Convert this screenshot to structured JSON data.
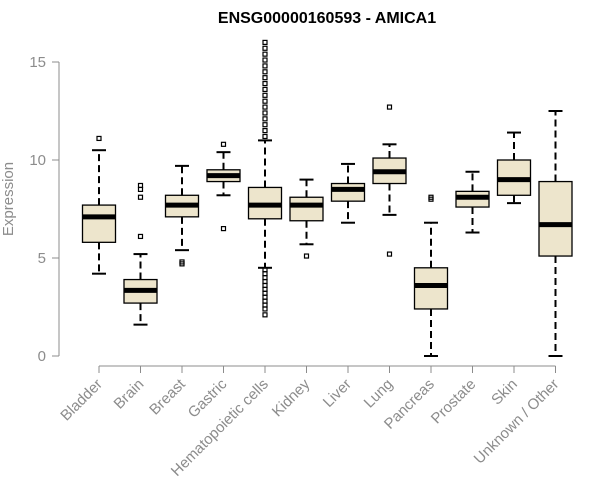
{
  "chart_data": {
    "type": "boxplot",
    "title": "ENSG00000160593 - AMICA1",
    "xlabel": "",
    "ylabel": "Expression",
    "ylim": [
      0,
      16
    ],
    "yticks": [
      0,
      5,
      10,
      15
    ],
    "box_fill": "#ede5cc",
    "box_stroke": "#000000",
    "axis_color": "#8c8c8c",
    "categories": [
      "Bladder",
      "Brain",
      "Breast",
      "Gastric",
      "Hematopoietic cells",
      "Kidney",
      "Liver",
      "Lung",
      "Pancreas",
      "Prostate",
      "Skin",
      "Unknown / Other"
    ],
    "boxes": [
      {
        "min": 4.2,
        "q1": 5.8,
        "median": 7.1,
        "q3": 7.7,
        "max": 10.5,
        "outliers": [
          11.1
        ]
      },
      {
        "min": 1.6,
        "q1": 2.7,
        "median": 3.35,
        "q3": 3.9,
        "max": 5.2,
        "outliers": [
          6.1,
          8.1,
          8.5,
          8.7
        ]
      },
      {
        "min": 5.4,
        "q1": 7.1,
        "median": 7.7,
        "q3": 8.2,
        "max": 9.7,
        "outliers": [
          4.7,
          4.8
        ]
      },
      {
        "min": 8.2,
        "q1": 8.9,
        "median": 9.2,
        "q3": 9.5,
        "max": 10.4,
        "outliers": [
          6.5,
          10.8
        ]
      },
      {
        "min": 4.5,
        "q1": 7.0,
        "median": 7.7,
        "q3": 8.6,
        "max": 11.0,
        "outliers": [
          2.1,
          2.4,
          2.6,
          2.8,
          3.0,
          3.2,
          3.4,
          3.6,
          3.8,
          4.0,
          4.2,
          4.4,
          11.2,
          11.5,
          11.8,
          12.1,
          12.4,
          12.7,
          13.0,
          13.3,
          13.6,
          13.9,
          14.2,
          14.5,
          14.8,
          15.1,
          15.4,
          15.7,
          16.0
        ]
      },
      {
        "min": 5.7,
        "q1": 6.9,
        "median": 7.7,
        "q3": 8.1,
        "max": 9.0,
        "outliers": [
          5.1
        ]
      },
      {
        "min": 6.8,
        "q1": 7.9,
        "median": 8.5,
        "q3": 8.8,
        "max": 9.8,
        "outliers": []
      },
      {
        "min": 7.2,
        "q1": 8.8,
        "median": 9.4,
        "q3": 10.1,
        "max": 10.8,
        "outliers": [
          5.2,
          12.7
        ]
      },
      {
        "min": 0.0,
        "q1": 2.4,
        "median": 3.6,
        "q3": 4.5,
        "max": 6.8,
        "outliers": [
          8.0,
          8.1
        ]
      },
      {
        "min": 6.3,
        "q1": 7.6,
        "median": 8.1,
        "q3": 8.4,
        "max": 9.4,
        "outliers": []
      },
      {
        "min": 7.8,
        "q1": 8.2,
        "median": 9.0,
        "q3": 10.0,
        "max": 11.4,
        "outliers": []
      },
      {
        "min": 0.0,
        "q1": 5.1,
        "median": 6.7,
        "q3": 8.9,
        "max": 12.5,
        "outliers": []
      }
    ]
  }
}
